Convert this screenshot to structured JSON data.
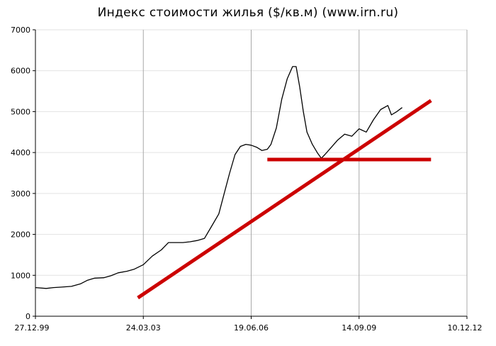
{
  "chart_data": {
    "type": "line",
    "title": "Индекс стоимости жилья  ($/кв.м) (www.irn.ru)",
    "ylim": [
      0,
      7000
    ],
    "yticks": [
      0,
      1000,
      2000,
      3000,
      4000,
      5000,
      6000,
      7000
    ],
    "xticks": [
      "27.12.99",
      "24.03.03",
      "19.06.06",
      "14.09.09",
      "10.12.12"
    ],
    "grid": {
      "vertical": true,
      "horizontal": true
    },
    "series": [
      {
        "color": "#000000",
        "points": [
          [
            0.0,
            700
          ],
          [
            0.3,
            680
          ],
          [
            0.5,
            700
          ],
          [
            0.7,
            710
          ],
          [
            1.0,
            730
          ],
          [
            1.25,
            790
          ],
          [
            1.45,
            880
          ],
          [
            1.65,
            930
          ],
          [
            1.9,
            940
          ],
          [
            2.1,
            990
          ],
          [
            2.3,
            1060
          ],
          [
            2.55,
            1100
          ],
          [
            2.75,
            1150
          ],
          [
            3.0,
            1260
          ],
          [
            3.25,
            1470
          ],
          [
            3.5,
            1620
          ],
          [
            3.7,
            1800
          ],
          [
            3.9,
            1800
          ],
          [
            4.1,
            1800
          ],
          [
            4.3,
            1820
          ],
          [
            4.5,
            1850
          ],
          [
            4.7,
            1900
          ],
          [
            4.9,
            2200
          ],
          [
            5.1,
            2500
          ],
          [
            5.25,
            3000
          ],
          [
            5.4,
            3500
          ],
          [
            5.55,
            3950
          ],
          [
            5.7,
            4150
          ],
          [
            5.85,
            4200
          ],
          [
            6.0,
            4180
          ],
          [
            6.15,
            4130
          ],
          [
            6.3,
            4050
          ],
          [
            6.45,
            4080
          ],
          [
            6.55,
            4200
          ],
          [
            6.7,
            4600
          ],
          [
            6.85,
            5300
          ],
          [
            7.0,
            5800
          ],
          [
            7.15,
            6100
          ],
          [
            7.25,
            6100
          ],
          [
            7.35,
            5600
          ],
          [
            7.45,
            5000
          ],
          [
            7.55,
            4500
          ],
          [
            7.7,
            4200
          ],
          [
            7.85,
            3980
          ],
          [
            7.95,
            3860
          ],
          [
            8.05,
            3950
          ],
          [
            8.2,
            4100
          ],
          [
            8.4,
            4300
          ],
          [
            8.6,
            4450
          ],
          [
            8.8,
            4400
          ],
          [
            9.0,
            4580
          ],
          [
            9.2,
            4500
          ],
          [
            9.4,
            4800
          ],
          [
            9.6,
            5050
          ],
          [
            9.8,
            5150
          ],
          [
            9.9,
            4920
          ],
          [
            10.05,
            5000
          ],
          [
            10.2,
            5100
          ]
        ]
      },
      {
        "color": "#cc0000",
        "kind": "trend-line",
        "points": [
          [
            2.85,
            450
          ],
          [
            11.0,
            5270
          ]
        ]
      },
      {
        "color": "#cc0000",
        "kind": "horizontal-level",
        "points": [
          [
            6.45,
            3830
          ],
          [
            11.0,
            3830
          ]
        ]
      }
    ]
  }
}
